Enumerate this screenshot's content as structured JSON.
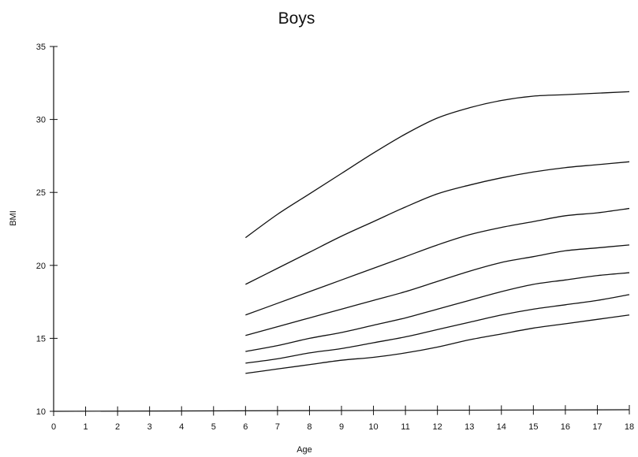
{
  "chart_data": {
    "type": "line",
    "title": "Boys",
    "xlabel": "Age",
    "ylabel": "BMI",
    "xlim": [
      0,
      18
    ],
    "ylim": [
      10,
      35
    ],
    "xticks": [
      "0",
      "1",
      "2",
      "3",
      "4",
      "5",
      "6",
      "7",
      "8",
      "9",
      "10",
      "11",
      "12",
      "13",
      "14",
      "15",
      "16",
      "17",
      "18"
    ],
    "yticks": [
      "10",
      "15",
      "20",
      "25",
      "30",
      "35"
    ],
    "grid": false,
    "legend": "none",
    "x": [
      6,
      7,
      8,
      9,
      10,
      11,
      12,
      13,
      14,
      15,
      16,
      17,
      18
    ],
    "series": [
      {
        "values": [
          12.6,
          12.9,
          13.2,
          13.5,
          13.7,
          14.0,
          14.4,
          14.9,
          15.3,
          15.7,
          16.0,
          16.3,
          16.6
        ]
      },
      {
        "values": [
          13.3,
          13.6,
          14.0,
          14.3,
          14.7,
          15.1,
          15.6,
          16.1,
          16.6,
          17.0,
          17.3,
          17.6,
          18.0
        ]
      },
      {
        "values": [
          14.1,
          14.5,
          15.0,
          15.4,
          15.9,
          16.4,
          17.0,
          17.6,
          18.2,
          18.7,
          19.0,
          19.3,
          19.5
        ]
      },
      {
        "values": [
          15.2,
          15.8,
          16.4,
          17.0,
          17.6,
          18.2,
          18.9,
          19.6,
          20.2,
          20.6,
          21.0,
          21.2,
          21.4
        ]
      },
      {
        "values": [
          16.6,
          17.4,
          18.2,
          19.0,
          19.8,
          20.6,
          21.4,
          22.1,
          22.6,
          23.0,
          23.4,
          23.6,
          23.9
        ]
      },
      {
        "values": [
          18.7,
          19.8,
          20.9,
          22.0,
          23.0,
          24.0,
          24.9,
          25.5,
          26.0,
          26.4,
          26.7,
          26.9,
          27.1
        ]
      },
      {
        "values": [
          21.9,
          23.5,
          24.9,
          26.3,
          27.7,
          29.0,
          30.1,
          30.8,
          31.3,
          31.6,
          31.7,
          31.8,
          31.9
        ]
      }
    ]
  }
}
